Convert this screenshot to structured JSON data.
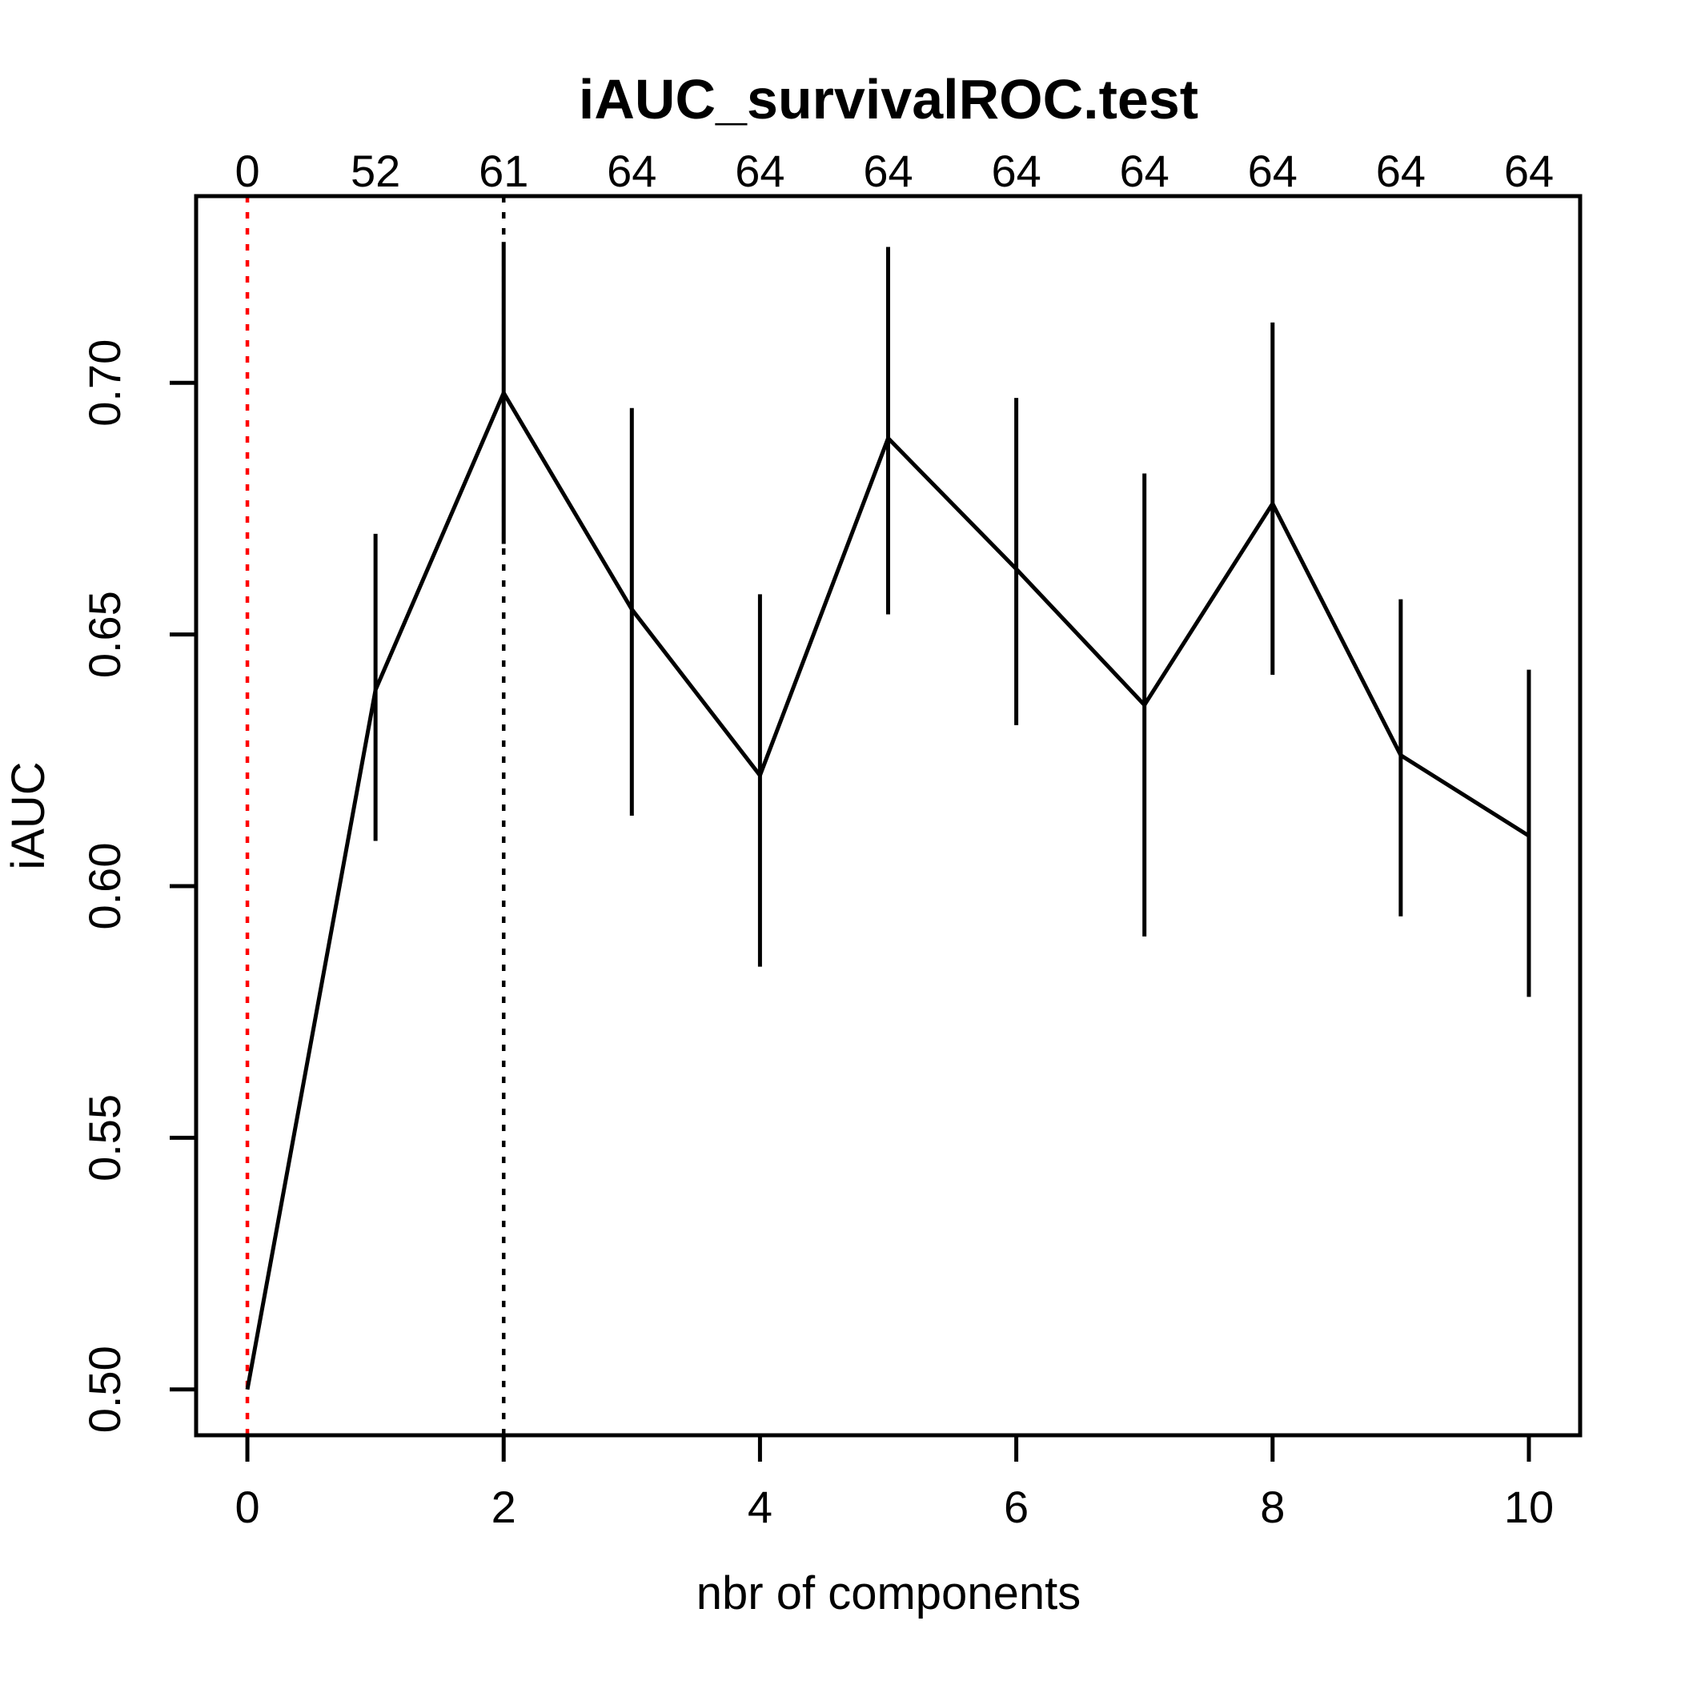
{
  "title": "iAUC_survivalROC.test",
  "axes": {
    "x_label": "nbr of components",
    "y_label": "iAUC",
    "x_tick_labels": [
      "0",
      "2",
      "4",
      "6",
      "8",
      "10"
    ],
    "y_tick_labels": [
      "0.50",
      "0.55",
      "0.60",
      "0.65",
      "0.70"
    ],
    "top_axis_labels": [
      "0",
      "52",
      "61",
      "64",
      "64",
      "64",
      "64",
      "64",
      "64",
      "64",
      "64"
    ]
  },
  "colors": {
    "foreground": "#000000",
    "background": "#ffffff",
    "reference_line_zero": "#ff0000",
    "reference_line_best": "#000000"
  },
  "chart_data": {
    "type": "line",
    "title": "iAUC_survivalROC.test",
    "xlabel": "nbr of components",
    "ylabel": "iAUC",
    "x": [
      0,
      1,
      2,
      3,
      4,
      5,
      6,
      7,
      8,
      9,
      10
    ],
    "series": [
      {
        "name": "iAUC",
        "values": [
          0.5,
          0.639,
          0.698,
          0.655,
          0.622,
          0.689,
          0.663,
          0.636,
          0.676,
          0.626,
          0.61
        ]
      }
    ],
    "error_bars": {
      "lower": [
        null,
        0.609,
        0.668,
        0.614,
        0.584,
        0.654,
        0.632,
        0.59,
        0.642,
        0.594,
        0.578
      ],
      "upper": [
        null,
        0.67,
        0.728,
        0.695,
        0.658,
        0.727,
        0.697,
        0.682,
        0.712,
        0.657,
        0.643
      ]
    },
    "top_axis_labels": [
      "0",
      "52",
      "61",
      "64",
      "64",
      "64",
      "64",
      "64",
      "64",
      "64",
      "64"
    ],
    "x_ticks": [
      0,
      2,
      4,
      6,
      8,
      10
    ],
    "y_ticks": [
      0.5,
      0.55,
      0.6,
      0.65,
      0.7
    ],
    "xlim": [
      -0.4,
      10.4
    ],
    "ylim": [
      0.4909,
      0.7371
    ],
    "grid": false,
    "legend": "none",
    "reference_lines": [
      {
        "axis": "x",
        "at": 0,
        "style": "dotted",
        "color": "#ff0000"
      },
      {
        "axis": "x",
        "at": 2,
        "style": "dotted",
        "color": "#000000"
      }
    ]
  },
  "layout_note": "R base-graphics style plot of cross-validated iAUC vs number of components with error bars"
}
